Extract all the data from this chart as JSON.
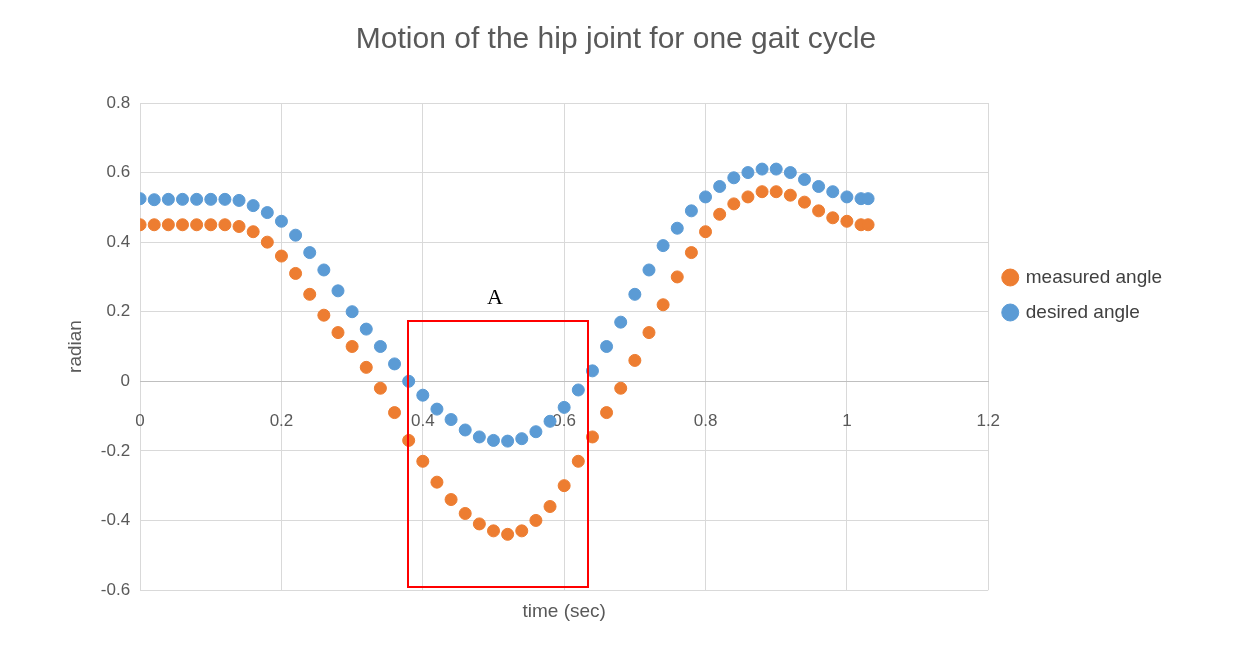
{
  "chart_data": {
    "type": "scatter",
    "title": "Motion of the hip joint for one gait cycle",
    "xlabel": "time (sec)",
    "ylabel": "radian",
    "x": [
      0,
      0.02,
      0.04,
      0.06,
      0.08,
      0.1,
      0.12,
      0.14,
      0.16,
      0.18,
      0.2,
      0.22,
      0.24,
      0.26,
      0.28,
      0.3,
      0.32,
      0.34,
      0.36,
      0.38,
      0.4,
      0.42,
      0.44,
      0.46,
      0.48,
      0.5,
      0.52,
      0.54,
      0.56,
      0.58,
      0.6,
      0.62,
      0.64,
      0.66,
      0.68,
      0.7,
      0.72,
      0.74,
      0.76,
      0.78,
      0.8,
      0.82,
      0.84,
      0.86,
      0.88,
      0.9,
      0.92,
      0.94,
      0.96,
      0.98,
      1,
      1.02,
      1.03
    ],
    "series": [
      {
        "name": "measured angle",
        "color": "#ed7d31",
        "values": [
          0.45,
          0.45,
          0.45,
          0.45,
          0.45,
          0.45,
          0.45,
          0.445,
          0.43,
          0.4,
          0.36,
          0.31,
          0.25,
          0.19,
          0.14,
          0.1,
          0.04,
          -0.02,
          -0.09,
          -0.17,
          -0.23,
          -0.29,
          -0.34,
          -0.38,
          -0.41,
          -0.43,
          -0.44,
          -0.43,
          -0.4,
          -0.36,
          -0.3,
          -0.23,
          -0.16,
          -0.09,
          -0.02,
          0.06,
          0.14,
          0.22,
          0.3,
          0.37,
          0.43,
          0.48,
          0.51,
          0.53,
          0.545,
          0.545,
          0.535,
          0.515,
          0.49,
          0.47,
          0.46,
          0.45,
          0.45
        ]
      },
      {
        "name": "desired angle",
        "color": "#5b9bd5",
        "values": [
          0.525,
          0.522,
          0.523,
          0.523,
          0.523,
          0.523,
          0.523,
          0.52,
          0.505,
          0.485,
          0.46,
          0.42,
          0.37,
          0.32,
          0.26,
          0.2,
          0.15,
          0.1,
          0.05,
          0.0,
          -0.04,
          -0.08,
          -0.11,
          -0.14,
          -0.16,
          -0.17,
          -0.172,
          -0.165,
          -0.145,
          -0.115,
          -0.075,
          -0.025,
          0.03,
          0.1,
          0.17,
          0.25,
          0.32,
          0.39,
          0.44,
          0.49,
          0.53,
          0.56,
          0.585,
          0.6,
          0.61,
          0.61,
          0.6,
          0.58,
          0.56,
          0.545,
          0.53,
          0.525,
          0.525
        ]
      }
    ],
    "xlim": [
      0,
      1.2
    ],
    "xticks": [
      0,
      0.2,
      0.4,
      0.6,
      0.8,
      1,
      1.2
    ],
    "ylim": [
      -0.6,
      0.8
    ],
    "yticks": [
      -0.6,
      -0.4,
      -0.2,
      0,
      0.2,
      0.4,
      0.6,
      0.8
    ],
    "grid": true,
    "legend": "right",
    "marker": "circle",
    "annotations": [
      "A"
    ]
  }
}
